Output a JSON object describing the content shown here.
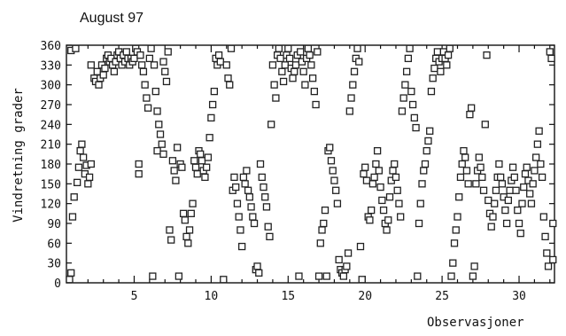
{
  "chart_data": {
    "type": "scatter",
    "title": "August 97",
    "xlabel": "Observasjoner",
    "ylabel": "Vindretning grader",
    "xlim": [
      0.6,
      32.3
    ],
    "ylim": [
      0,
      360
    ],
    "xticks": [
      5,
      10,
      15,
      20,
      25,
      30
    ],
    "yticks": [
      0,
      30,
      60,
      90,
      120,
      150,
      180,
      210,
      240,
      270,
      300,
      330,
      360
    ],
    "marker": "square",
    "grid": false,
    "legend": "none",
    "series": [
      {
        "points": [
          [
            0.8,
            5
          ],
          [
            0.9,
            15
          ],
          [
            0.9,
            352
          ],
          [
            1.0,
            100
          ],
          [
            1.1,
            130
          ],
          [
            1.2,
            355
          ],
          [
            1.3,
            152
          ],
          [
            1.4,
            175
          ],
          [
            1.5,
            200
          ],
          [
            1.6,
            210
          ],
          [
            1.7,
            190
          ],
          [
            1.8,
            165
          ],
          [
            1.9,
            178
          ],
          [
            2.0,
            150
          ],
          [
            2.1,
            160
          ],
          [
            2.2,
            180
          ],
          [
            2.2,
            330
          ],
          [
            2.4,
            310
          ],
          [
            2.5,
            305
          ],
          [
            2.6,
            320
          ],
          [
            2.7,
            300
          ],
          [
            2.8,
            310
          ],
          [
            2.9,
            330
          ],
          [
            3.0,
            315
          ],
          [
            3.1,
            325
          ],
          [
            3.2,
            340
          ],
          [
            3.3,
            345
          ],
          [
            3.4,
            335
          ],
          [
            3.5,
            340
          ],
          [
            3.6,
            330
          ],
          [
            3.7,
            320
          ],
          [
            3.8,
            335
          ],
          [
            3.9,
            345
          ],
          [
            4.0,
            350
          ],
          [
            4.1,
            340
          ],
          [
            4.2,
            330
          ],
          [
            4.3,
            345
          ],
          [
            4.4,
            335
          ],
          [
            4.5,
            350
          ],
          [
            4.6,
            340
          ],
          [
            4.7,
            330
          ],
          [
            4.8,
            340
          ],
          [
            4.9,
            335
          ],
          [
            5.0,
            340
          ],
          [
            5.1,
            355
          ],
          [
            5.2,
            350
          ],
          [
            5.3,
            165
          ],
          [
            5.3,
            180
          ],
          [
            5.4,
            345
          ],
          [
            5.5,
            330
          ],
          [
            5.6,
            320
          ],
          [
            5.7,
            300
          ],
          [
            5.8,
            280
          ],
          [
            5.9,
            265
          ],
          [
            6.0,
            340
          ],
          [
            6.1,
            355
          ],
          [
            6.2,
            10
          ],
          [
            6.3,
            330
          ],
          [
            6.4,
            290
          ],
          [
            6.5,
            260
          ],
          [
            6.5,
            200
          ],
          [
            6.6,
            240
          ],
          [
            6.7,
            225
          ],
          [
            6.8,
            210
          ],
          [
            6.9,
            195
          ],
          [
            6.9,
            335
          ],
          [
            7.0,
            320
          ],
          [
            7.1,
            305
          ],
          [
            7.2,
            350
          ],
          [
            7.3,
            80
          ],
          [
            7.4,
            65
          ],
          [
            7.5,
            185
          ],
          [
            7.6,
            170
          ],
          [
            7.7,
            155
          ],
          [
            7.8,
            205
          ],
          [
            7.9,
            10
          ],
          [
            8.0,
            180
          ],
          [
            8.1,
            175
          ],
          [
            8.2,
            105
          ],
          [
            8.3,
            95
          ],
          [
            8.4,
            70
          ],
          [
            8.5,
            60
          ],
          [
            8.6,
            80
          ],
          [
            8.7,
            105
          ],
          [
            8.8,
            120
          ],
          [
            8.9,
            185
          ],
          [
            9.0,
            175
          ],
          [
            9.1,
            165
          ],
          [
            9.2,
            200
          ],
          [
            9.3,
            195
          ],
          [
            9.4,
            185
          ],
          [
            9.5,
            170
          ],
          [
            9.6,
            160
          ],
          [
            9.7,
            175
          ],
          [
            9.8,
            190
          ],
          [
            9.9,
            220
          ],
          [
            10.0,
            250
          ],
          [
            10.1,
            270
          ],
          [
            10.2,
            290
          ],
          [
            10.3,
            340
          ],
          [
            10.4,
            330
          ],
          [
            10.5,
            345
          ],
          [
            10.6,
            335
          ],
          [
            10.8,
            5
          ],
          [
            11.0,
            330
          ],
          [
            11.1,
            310
          ],
          [
            11.2,
            300
          ],
          [
            11.3,
            355
          ],
          [
            11.4,
            140
          ],
          [
            11.5,
            160
          ],
          [
            11.6,
            145
          ],
          [
            11.7,
            120
          ],
          [
            11.8,
            100
          ],
          [
            11.9,
            80
          ],
          [
            12.0,
            55
          ],
          [
            12.1,
            160
          ],
          [
            12.2,
            150
          ],
          [
            12.3,
            170
          ],
          [
            12.4,
            140
          ],
          [
            12.5,
            130
          ],
          [
            12.6,
            115
          ],
          [
            12.7,
            100
          ],
          [
            12.8,
            90
          ],
          [
            12.9,
            20
          ],
          [
            13.0,
            25
          ],
          [
            13.1,
            15
          ],
          [
            13.2,
            180
          ],
          [
            13.3,
            160
          ],
          [
            13.4,
            145
          ],
          [
            13.5,
            130
          ],
          [
            13.6,
            115
          ],
          [
            13.7,
            85
          ],
          [
            13.8,
            70
          ],
          [
            13.9,
            240
          ],
          [
            14.0,
            330
          ],
          [
            14.1,
            300
          ],
          [
            14.2,
            280
          ],
          [
            14.3,
            345
          ],
          [
            14.4,
            355
          ],
          [
            14.5,
            340
          ],
          [
            14.6,
            320
          ],
          [
            14.7,
            305
          ],
          [
            14.8,
            330
          ],
          [
            14.9,
            345
          ],
          [
            15.0,
            355
          ],
          [
            15.1,
            340
          ],
          [
            15.2,
            325
          ],
          [
            15.3,
            310
          ],
          [
            15.4,
            320
          ],
          [
            15.5,
            330
          ],
          [
            15.6,
            345
          ],
          [
            15.7,
            10
          ],
          [
            15.8,
            350
          ],
          [
            15.9,
            335
          ],
          [
            16.0,
            320
          ],
          [
            16.1,
            300
          ],
          [
            16.2,
            340
          ],
          [
            16.3,
            355
          ],
          [
            16.4,
            345
          ],
          [
            16.5,
            330
          ],
          [
            16.6,
            310
          ],
          [
            16.7,
            290
          ],
          [
            16.8,
            270
          ],
          [
            16.9,
            350
          ],
          [
            17.0,
            10
          ],
          [
            17.1,
            60
          ],
          [
            17.2,
            80
          ],
          [
            17.3,
            90
          ],
          [
            17.4,
            110
          ],
          [
            17.5,
            10
          ],
          [
            17.6,
            200
          ],
          [
            17.7,
            205
          ],
          [
            17.8,
            185
          ],
          [
            17.9,
            170
          ],
          [
            18.0,
            155
          ],
          [
            18.1,
            140
          ],
          [
            18.2,
            120
          ],
          [
            18.3,
            35
          ],
          [
            18.4,
            20
          ],
          [
            18.5,
            15
          ],
          [
            18.6,
            10
          ],
          [
            18.7,
            20
          ],
          [
            18.8,
            25
          ],
          [
            18.9,
            45
          ],
          [
            19.0,
            260
          ],
          [
            19.1,
            280
          ],
          [
            19.2,
            300
          ],
          [
            19.3,
            320
          ],
          [
            19.4,
            340
          ],
          [
            19.5,
            355
          ],
          [
            19.6,
            335
          ],
          [
            19.7,
            55
          ],
          [
            19.8,
            5
          ],
          [
            19.9,
            165
          ],
          [
            20.0,
            175
          ],
          [
            20.1,
            155
          ],
          [
            20.2,
            100
          ],
          [
            20.3,
            95
          ],
          [
            20.4,
            110
          ],
          [
            20.5,
            150
          ],
          [
            20.6,
            160
          ],
          [
            20.7,
            180
          ],
          [
            20.8,
            200
          ],
          [
            20.9,
            170
          ],
          [
            21.0,
            145
          ],
          [
            21.1,
            125
          ],
          [
            21.2,
            110
          ],
          [
            21.3,
            90
          ],
          [
            21.4,
            80
          ],
          [
            21.5,
            95
          ],
          [
            21.6,
            130
          ],
          [
            21.7,
            155
          ],
          [
            21.8,
            170
          ],
          [
            21.9,
            180
          ],
          [
            22.0,
            160
          ],
          [
            22.1,
            140
          ],
          [
            22.2,
            120
          ],
          [
            22.3,
            100
          ],
          [
            22.4,
            260
          ],
          [
            22.5,
            280
          ],
          [
            22.6,
            300
          ],
          [
            22.7,
            320
          ],
          [
            22.8,
            340
          ],
          [
            22.9,
            355
          ],
          [
            23.0,
            290
          ],
          [
            23.1,
            270
          ],
          [
            23.2,
            250
          ],
          [
            23.3,
            235
          ],
          [
            23.4,
            10
          ],
          [
            23.5,
            90
          ],
          [
            23.6,
            120
          ],
          [
            23.7,
            150
          ],
          [
            23.8,
            170
          ],
          [
            23.9,
            180
          ],
          [
            24.0,
            200
          ],
          [
            24.1,
            215
          ],
          [
            24.2,
            230
          ],
          [
            24.3,
            290
          ],
          [
            24.4,
            310
          ],
          [
            24.5,
            325
          ],
          [
            24.6,
            340
          ],
          [
            24.7,
            350
          ],
          [
            24.8,
            335
          ],
          [
            24.9,
            320
          ],
          [
            25.0,
            340
          ],
          [
            25.1,
            350
          ],
          [
            25.2,
            340
          ],
          [
            25.3,
            330
          ],
          [
            25.4,
            345
          ],
          [
            25.5,
            355
          ],
          [
            25.6,
            10
          ],
          [
            25.7,
            30
          ],
          [
            25.8,
            60
          ],
          [
            25.9,
            80
          ],
          [
            26.0,
            100
          ],
          [
            26.1,
            130
          ],
          [
            26.2,
            160
          ],
          [
            26.3,
            180
          ],
          [
            26.4,
            200
          ],
          [
            26.5,
            190
          ],
          [
            26.6,
            170
          ],
          [
            26.7,
            150
          ],
          [
            26.8,
            255
          ],
          [
            26.9,
            265
          ],
          [
            27.0,
            10
          ],
          [
            27.1,
            25
          ],
          [
            27.2,
            150
          ],
          [
            27.3,
            170
          ],
          [
            27.4,
            190
          ],
          [
            27.5,
            175
          ],
          [
            27.6,
            160
          ],
          [
            27.7,
            140
          ],
          [
            27.8,
            240
          ],
          [
            27.9,
            345
          ],
          [
            28.0,
            125
          ],
          [
            28.1,
            105
          ],
          [
            28.2,
            85
          ],
          [
            28.3,
            100
          ],
          [
            28.4,
            120
          ],
          [
            28.5,
            140
          ],
          [
            28.6,
            160
          ],
          [
            28.7,
            180
          ],
          [
            28.8,
            160
          ],
          [
            28.9,
            150
          ],
          [
            29.0,
            130
          ],
          [
            29.1,
            110
          ],
          [
            29.2,
            90
          ],
          [
            29.3,
            125
          ],
          [
            29.4,
            140
          ],
          [
            29.5,
            155
          ],
          [
            29.6,
            175
          ],
          [
            29.7,
            160
          ],
          [
            29.8,
            140
          ],
          [
            29.9,
            110
          ],
          [
            30.0,
            90
          ],
          [
            30.1,
            75
          ],
          [
            30.2,
            120
          ],
          [
            30.3,
            145
          ],
          [
            30.4,
            165
          ],
          [
            30.5,
            175
          ],
          [
            30.6,
            155
          ],
          [
            30.7,
            135
          ],
          [
            30.8,
            120
          ],
          [
            30.9,
            150
          ],
          [
            31.0,
            170
          ],
          [
            31.1,
            190
          ],
          [
            31.2,
            210
          ],
          [
            31.3,
            230
          ],
          [
            31.4,
            180
          ],
          [
            31.5,
            160
          ],
          [
            31.6,
            100
          ],
          [
            31.7,
            70
          ],
          [
            31.8,
            45
          ],
          [
            31.9,
            25
          ],
          [
            32.0,
            350
          ],
          [
            32.1,
            340
          ],
          [
            32.2,
            90
          ],
          [
            32.2,
            35
          ]
        ]
      }
    ]
  }
}
